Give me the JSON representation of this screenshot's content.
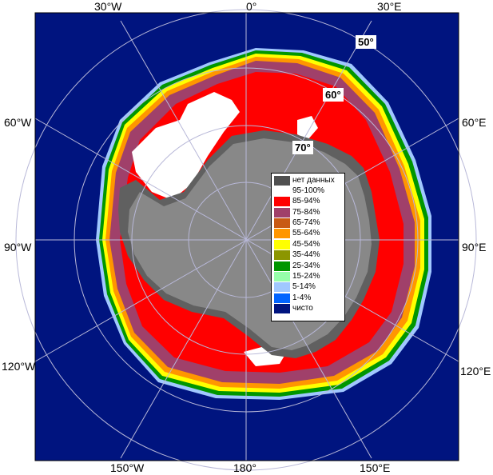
{
  "colors": {
    "ocean": "#00147f",
    "land": "#888888",
    "shelf": "#606060",
    "grid": "#b8b8d8"
  },
  "labels": {
    "lon_top_left": "30°W",
    "lon_top_mid": "0°",
    "lon_top_right": "30°E",
    "lon_left_60": "60°W",
    "lon_right_60": "60°E",
    "lon_left_90": "90°W",
    "lon_right_90": "90°E",
    "lon_left_120": "120°W",
    "lon_right_120": "120°E",
    "lon_bottom_left": "150°W",
    "lon_bottom_mid": "180°",
    "lon_bottom_right": "150°E",
    "lat_50": "50°",
    "lat_60": "60°",
    "lat_70": "70°"
  },
  "legend": [
    {
      "label": "нет данных",
      "color": "#505050"
    },
    {
      "label": "95-100%",
      "color": "#ffffff"
    },
    {
      "label": "85-94%",
      "color": "#ff0000"
    },
    {
      "label": "75-84%",
      "color": "#a0406a"
    },
    {
      "label": "65-74%",
      "color": "#c85a14"
    },
    {
      "label": "55-64%",
      "color": "#ff9600"
    },
    {
      "label": "45-54%",
      "color": "#ffff00"
    },
    {
      "label": "35-44%",
      "color": "#8c9600"
    },
    {
      "label": "25-34%",
      "color": "#009600"
    },
    {
      "label": "15-24%",
      "color": "#96ffaa"
    },
    {
      "label": "5-14%",
      "color": "#a0c8ff"
    },
    {
      "label": "1-4%",
      "color": "#0064ff"
    },
    {
      "label": "чисто",
      "color": "#00147f"
    }
  ]
}
